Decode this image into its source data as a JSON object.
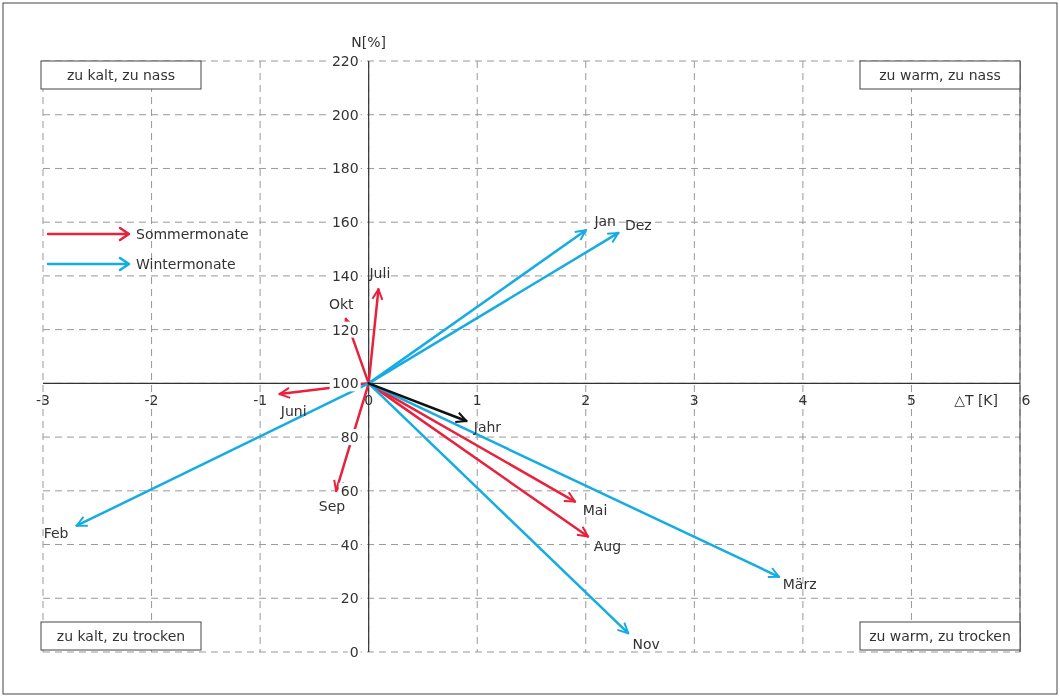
{
  "chart_data": {
    "type": "line",
    "xlabel": "△T [K]",
    "ylabel": "N[%]",
    "xlim": [
      -3,
      6
    ],
    "xticks": [
      -3,
      -2,
      -1,
      0,
      1,
      2,
      3,
      4,
      5,
      6
    ],
    "ylim": [
      0,
      220
    ],
    "yticks": [
      0,
      20,
      40,
      60,
      80,
      100,
      120,
      140,
      160,
      180,
      200,
      220
    ],
    "grid": true,
    "legend": "left",
    "line_style": "solid",
    "series": [
      {
        "name": "Sommermonate",
        "color": "#e8213c",
        "x": [
          0,
          0.09,
          null,
          0,
          -0.21,
          null,
          0,
          -0.82,
          null,
          0,
          -0.3,
          null,
          0,
          1.9,
          null,
          0,
          2.02
        ],
        "values": [
          100,
          135,
          null,
          100,
          124,
          null,
          100,
          96,
          null,
          100,
          60,
          null,
          100,
          56,
          null,
          100,
          43
        ]
      },
      {
        "name": "Wintermonate",
        "color": "#15ace3",
        "x": [
          0,
          2.0,
          null,
          0,
          2.3,
          null,
          0,
          -2.69,
          null,
          0,
          3.78,
          null,
          0,
          2.39
        ],
        "values": [
          100,
          157,
          null,
          100,
          156,
          null,
          100,
          47,
          null,
          100,
          28,
          null,
          100,
          7
        ]
      },
      {
        "color": "#111111",
        "x": [
          0,
          0.9
        ],
        "values": [
          100,
          86
        ]
      }
    ],
    "annotations": [
      "zu kalt, zu nass",
      "zu warm, zu nass",
      "zu kalt, zu trocken",
      "zu warm, zu trocken",
      {
        "text": "Jan",
        "x": 2.0,
        "y": 157
      },
      {
        "text": "Dez",
        "x": 2.3,
        "y": 156
      },
      {
        "text": "Juli",
        "x": 0.09,
        "y": 135
      },
      {
        "text": "Okt",
        "x": -0.21,
        "y": 124
      },
      {
        "text": "Juni",
        "x": -0.82,
        "y": 96
      },
      {
        "text": "Sep",
        "x": -0.3,
        "y": 60
      },
      {
        "text": "Feb",
        "x": -2.69,
        "y": 47
      },
      {
        "text": "Jahr",
        "x": 0.9,
        "y": 86
      },
      {
        "text": "Mai",
        "x": 1.9,
        "y": 56
      },
      {
        "text": "Aug",
        "x": 2.02,
        "y": 43
      },
      {
        "text": "März",
        "x": 3.78,
        "y": 28
      },
      {
        "text": "Nov",
        "x": 2.39,
        "y": 7
      }
    ]
  }
}
